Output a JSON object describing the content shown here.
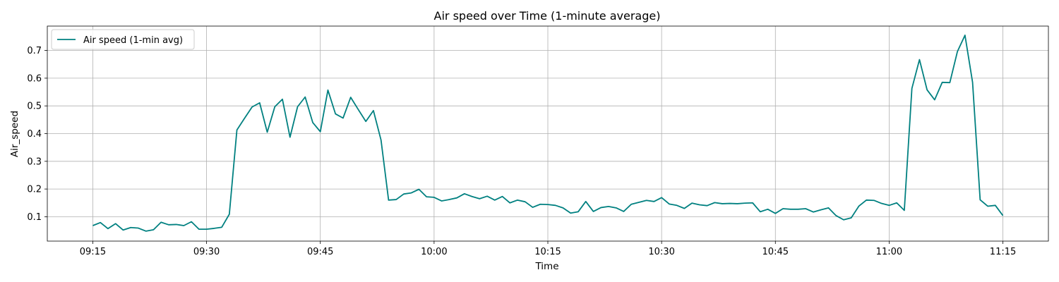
{
  "chart_data": {
    "type": "line",
    "title": "Air speed over Time (1-minute average)",
    "xlabel": "Time",
    "ylabel": "Air_speed",
    "x_ticks": [
      "09:15",
      "09:30",
      "09:45",
      "10:00",
      "10:15",
      "10:30",
      "10:45",
      "11:00",
      "11:15"
    ],
    "x_tick_minutes": [
      555,
      570,
      585,
      600,
      615,
      630,
      645,
      660,
      675
    ],
    "xlim_minutes": [
      549,
      681
    ],
    "y_ticks": [
      0.1,
      0.2,
      0.3,
      0.4,
      0.5,
      0.6,
      0.7
    ],
    "ylim": [
      0.012,
      0.788
    ],
    "grid": true,
    "legend_position": "top-left",
    "series": [
      {
        "name": "Air speed (1-min avg)",
        "color": "#008080",
        "x_start_minute": 555,
        "x_step_minutes": 1,
        "values": [
          0.068,
          0.079,
          0.057,
          0.075,
          0.052,
          0.061,
          0.059,
          0.048,
          0.053,
          0.08,
          0.071,
          0.072,
          0.068,
          0.082,
          0.055,
          0.055,
          0.058,
          0.062,
          0.109,
          0.413,
          0.455,
          0.496,
          0.511,
          0.405,
          0.497,
          0.524,
          0.387,
          0.497,
          0.532,
          0.44,
          0.407,
          0.557,
          0.471,
          0.456,
          0.531,
          0.487,
          0.444,
          0.483,
          0.377,
          0.16,
          0.162,
          0.182,
          0.186,
          0.199,
          0.172,
          0.17,
          0.157,
          0.162,
          0.168,
          0.183,
          0.173,
          0.165,
          0.174,
          0.16,
          0.173,
          0.15,
          0.16,
          0.154,
          0.134,
          0.145,
          0.144,
          0.141,
          0.132,
          0.113,
          0.118,
          0.155,
          0.119,
          0.133,
          0.137,
          0.132,
          0.119,
          0.145,
          0.152,
          0.159,
          0.155,
          0.169,
          0.146,
          0.141,
          0.13,
          0.149,
          0.143,
          0.14,
          0.151,
          0.147,
          0.148,
          0.147,
          0.149,
          0.15,
          0.118,
          0.127,
          0.112,
          0.129,
          0.127,
          0.127,
          0.129,
          0.117,
          0.125,
          0.132,
          0.104,
          0.089,
          0.096,
          0.138,
          0.16,
          0.159,
          0.148,
          0.141,
          0.15,
          0.123,
          0.563,
          0.667,
          0.558,
          0.522,
          0.585,
          0.584,
          0.696,
          0.755,
          0.585,
          0.161,
          0.138,
          0.141,
          0.104
        ]
      }
    ]
  }
}
